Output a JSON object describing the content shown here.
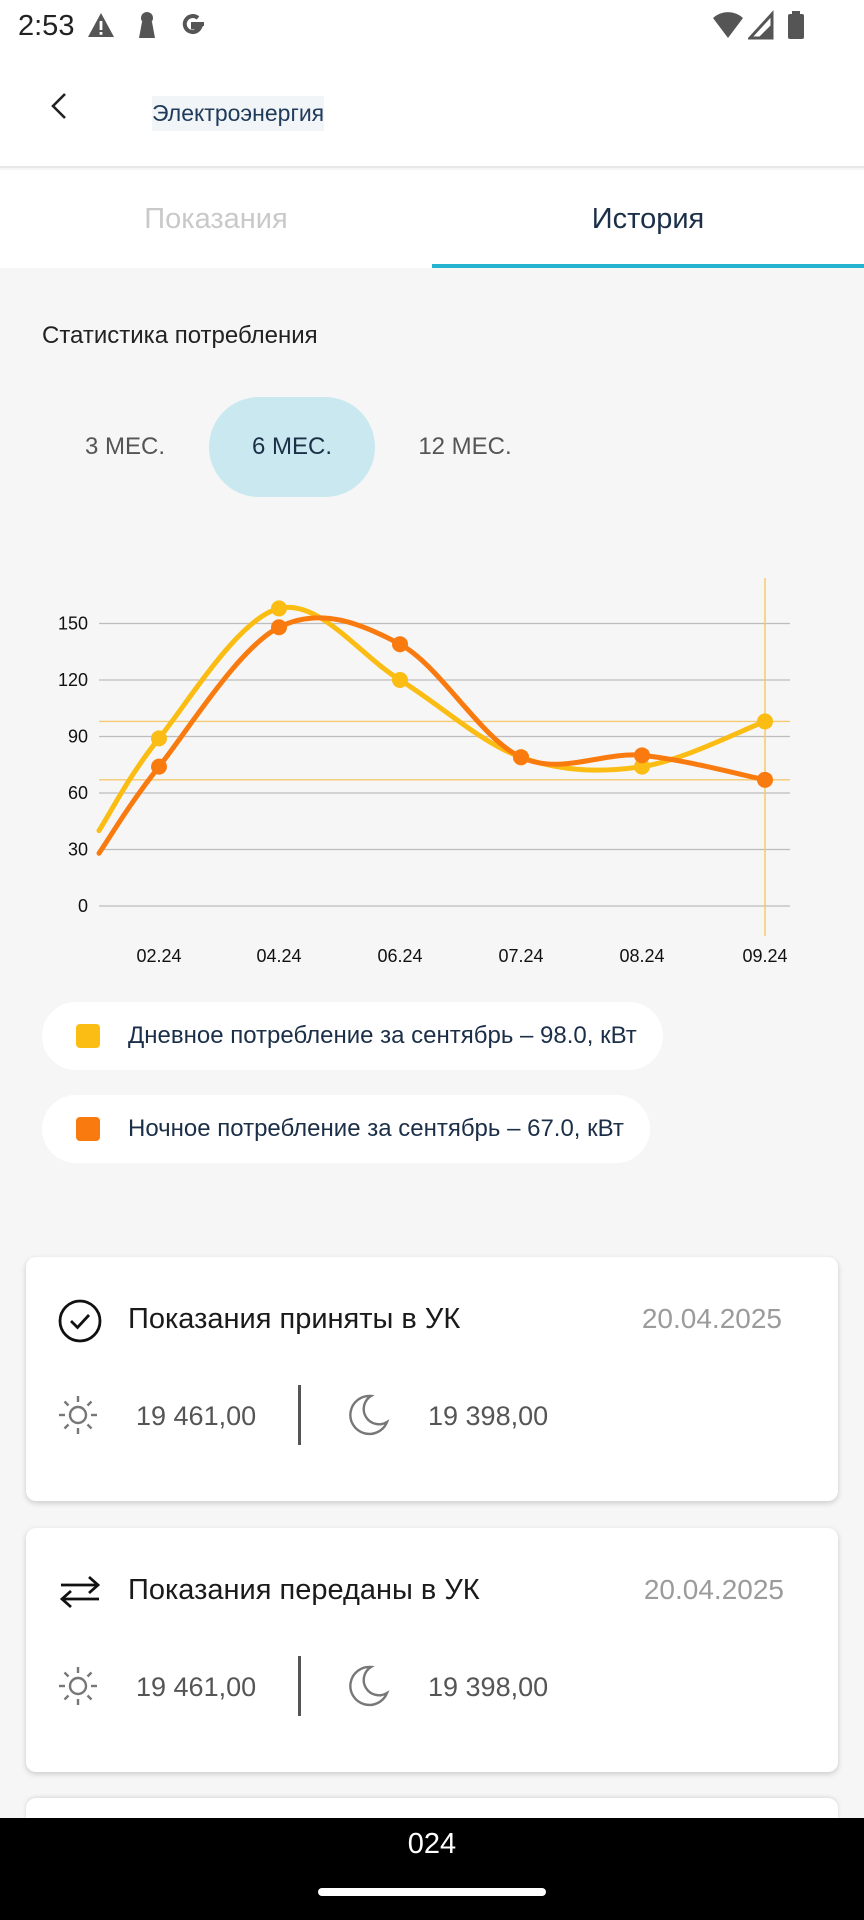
{
  "status_bar": {
    "time": "2:53"
  },
  "header": {
    "title": "Электроэнергия"
  },
  "tabs": [
    {
      "label": "Показания",
      "active": false
    },
    {
      "label": "История",
      "active": true
    }
  ],
  "stats": {
    "title": "Статистика потребления",
    "periods": [
      {
        "label": "3 МЕС.",
        "active": false
      },
      {
        "label": "6 МЕС.",
        "active": true
      },
      {
        "label": "12 МЕС.",
        "active": false
      }
    ]
  },
  "chart_data": {
    "type": "line",
    "categories": [
      "02.24",
      "04.24",
      "06.24",
      "07.24",
      "08.24",
      "09.24"
    ],
    "series": [
      {
        "values": [
          89,
          158,
          120,
          79,
          74,
          98
        ],
        "color": "#fbbd13"
      },
      {
        "values": [
          74,
          148,
          139,
          79,
          80,
          67
        ],
        "color": "#f97b10"
      }
    ],
    "yticks": [
      0,
      30,
      60,
      90,
      120,
      150
    ],
    "ylim": [
      0,
      170
    ],
    "grid": true
  },
  "legend": [
    {
      "text": "Дневное потребление за сентябрь – 98.0, кВт",
      "color": "#fbbd13"
    },
    {
      "text": "Ночное потребление за сентябрь – 67.0, кВт",
      "color": "#f97b10"
    }
  ],
  "history": [
    {
      "title": "Показания приняты в УК",
      "date": "20.04.2025",
      "day_value": "19 461,00",
      "night_value": "19 398,00",
      "icon": "check-circle-icon"
    },
    {
      "title": "Показания переданы в УК",
      "date": "20.04.2025",
      "day_value": "19 461,00",
      "night_value": "19 398,00",
      "icon": "transfer-arrows-icon"
    }
  ],
  "nav": {
    "text": "024"
  }
}
